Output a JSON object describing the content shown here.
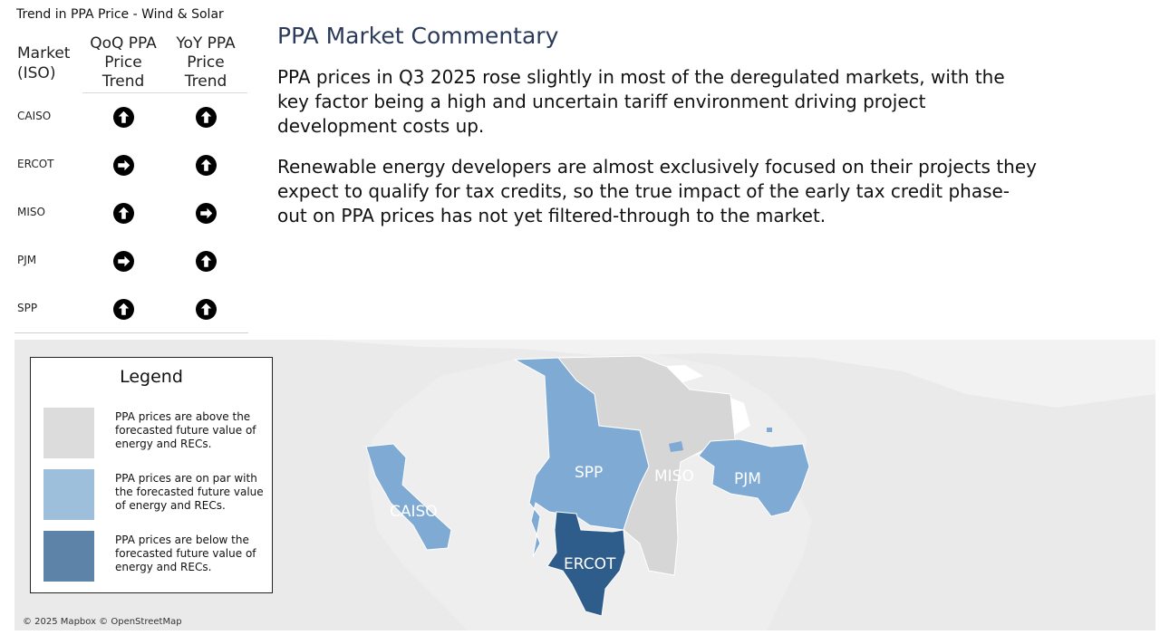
{
  "table": {
    "title": "Trend in PPA Price - Wind & Solar",
    "header_market": "Market (ISO)",
    "header_qoq": "QoQ PPA Price Trend",
    "header_yoy": "YoY PPA Price Trend",
    "rows": [
      {
        "market": "CAISO",
        "qoq": "up",
        "yoy": "up"
      },
      {
        "market": "ERCOT",
        "qoq": "flat",
        "yoy": "up"
      },
      {
        "market": "MISO",
        "qoq": "up",
        "yoy": "flat"
      },
      {
        "market": "PJM",
        "qoq": "flat",
        "yoy": "up"
      },
      {
        "market": "SPP",
        "qoq": "up",
        "yoy": "up"
      }
    ],
    "icons": {
      "up": "arrow-up-circle-icon",
      "flat": "arrow-right-circle-icon"
    }
  },
  "commentary": {
    "title": "PPA Market Commentary",
    "paragraph1": "PPA prices in Q3 2025 rose slightly in most of the deregulated markets, with the key factor being a high and uncertain tariff environment driving project development costs up.",
    "paragraph2": "Renewable energy developers are almost exclusively focused on their projects they expect to qualify for tax credits, so the true impact of the early tax credit phase-out on PPA prices has not yet filtered-through to the market."
  },
  "map": {
    "legend_title": "Legend",
    "legend_items": [
      {
        "text": "PPA prices are above the forecasted future value of energy and RECs.",
        "color": "#dcdcdc"
      },
      {
        "text": "PPA prices are on par with the forecasted future value of energy and RECs.",
        "color": "#9dbfdc"
      },
      {
        "text": "PPA prices are below the forecasted future value of energy and RECs.",
        "color": "#5d83a8"
      }
    ],
    "region_labels": {
      "caiso": "CAISO",
      "spp": "SPP",
      "miso": "MISO",
      "pjm": "PJM",
      "ercot": "ERCOT"
    },
    "attribution": "© 2025 Mapbox © OpenStreetMap",
    "colors": {
      "above": "#d6d6d6",
      "on_par": "#7eaad3",
      "below": "#2e5d8c",
      "land": "#ebebeb"
    }
  }
}
